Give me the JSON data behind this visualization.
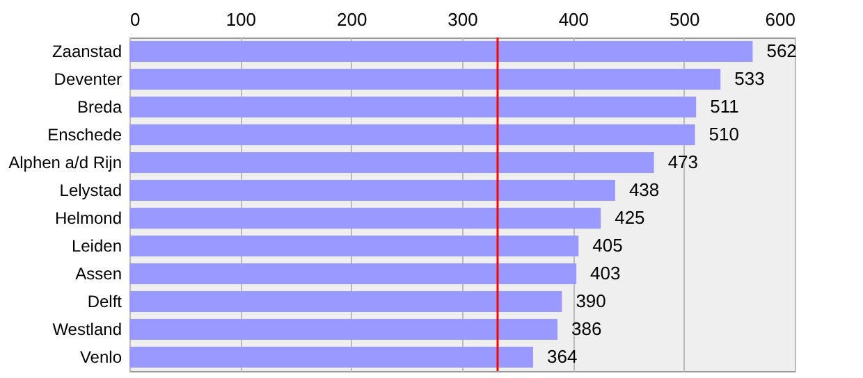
{
  "chart_data": {
    "type": "bar",
    "orientation": "horizontal",
    "categories": [
      "Zaanstad",
      "Deventer",
      "Breda",
      "Enschede",
      "Alphen a/d Rijn",
      "Lelystad",
      "Helmond",
      "Leiden",
      "Assen",
      "Delft",
      "Westland",
      "Venlo"
    ],
    "values": [
      562,
      533,
      511,
      510,
      473,
      438,
      425,
      405,
      403,
      390,
      386,
      364
    ],
    "color": "#9999ff",
    "data_labels": true,
    "xlim": [
      0,
      600
    ],
    "xticks": [
      0,
      100,
      200,
      300,
      400,
      500,
      600
    ],
    "grid": "x",
    "ref_lines": [
      {
        "axis": "x",
        "value": 332,
        "color": "#ff0000"
      }
    ]
  }
}
